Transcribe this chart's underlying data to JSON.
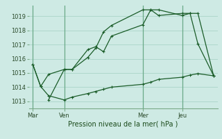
{
  "background_color": "#ceeae4",
  "grid_color": "#aad4c8",
  "line_color": "#1a5c28",
  "vline_color": "#6aaa88",
  "title": "Pression niveau de la mer( hPa )",
  "ylim": [
    1012.5,
    1019.75
  ],
  "yticks": [
    1013,
    1014,
    1015,
    1016,
    1017,
    1018,
    1019
  ],
  "xtick_labels": [
    "Mar",
    "Ven",
    "Mer",
    "Jeu"
  ],
  "xtick_positions": [
    0,
    4,
    14,
    19
  ],
  "vline_positions": [
    0,
    4,
    14,
    19
  ],
  "line1_x": [
    0,
    1,
    2,
    4,
    5,
    7,
    8,
    9,
    10,
    14,
    15,
    16,
    19,
    20,
    21,
    23
  ],
  "line1_y": [
    1015.6,
    1014.05,
    1014.9,
    1015.25,
    1015.25,
    1016.65,
    1016.85,
    1016.5,
    1017.6,
    1018.4,
    1019.45,
    1019.45,
    1019.05,
    1019.2,
    1019.2,
    1014.8
  ],
  "line2_x": [
    0,
    1,
    2,
    4,
    5,
    7,
    8,
    9,
    10,
    14,
    15,
    16,
    19,
    20,
    21,
    23
  ],
  "line2_y": [
    1015.6,
    1014.05,
    1013.4,
    1013.1,
    1013.3,
    1013.55,
    1013.7,
    1013.85,
    1014.0,
    1014.2,
    1014.35,
    1014.55,
    1014.7,
    1014.85,
    1014.95,
    1014.8
  ],
  "line3_x": [
    2,
    4,
    5,
    7,
    8,
    9,
    10,
    14,
    15,
    16,
    19,
    20,
    21,
    23
  ],
  "line3_y": [
    1013.1,
    1015.25,
    1015.25,
    1016.1,
    1016.75,
    1017.9,
    1018.35,
    1019.45,
    1019.45,
    1019.05,
    1019.2,
    1019.2,
    1017.05,
    1014.8
  ],
  "figsize": [
    3.2,
    2.0
  ],
  "dpi": 100
}
